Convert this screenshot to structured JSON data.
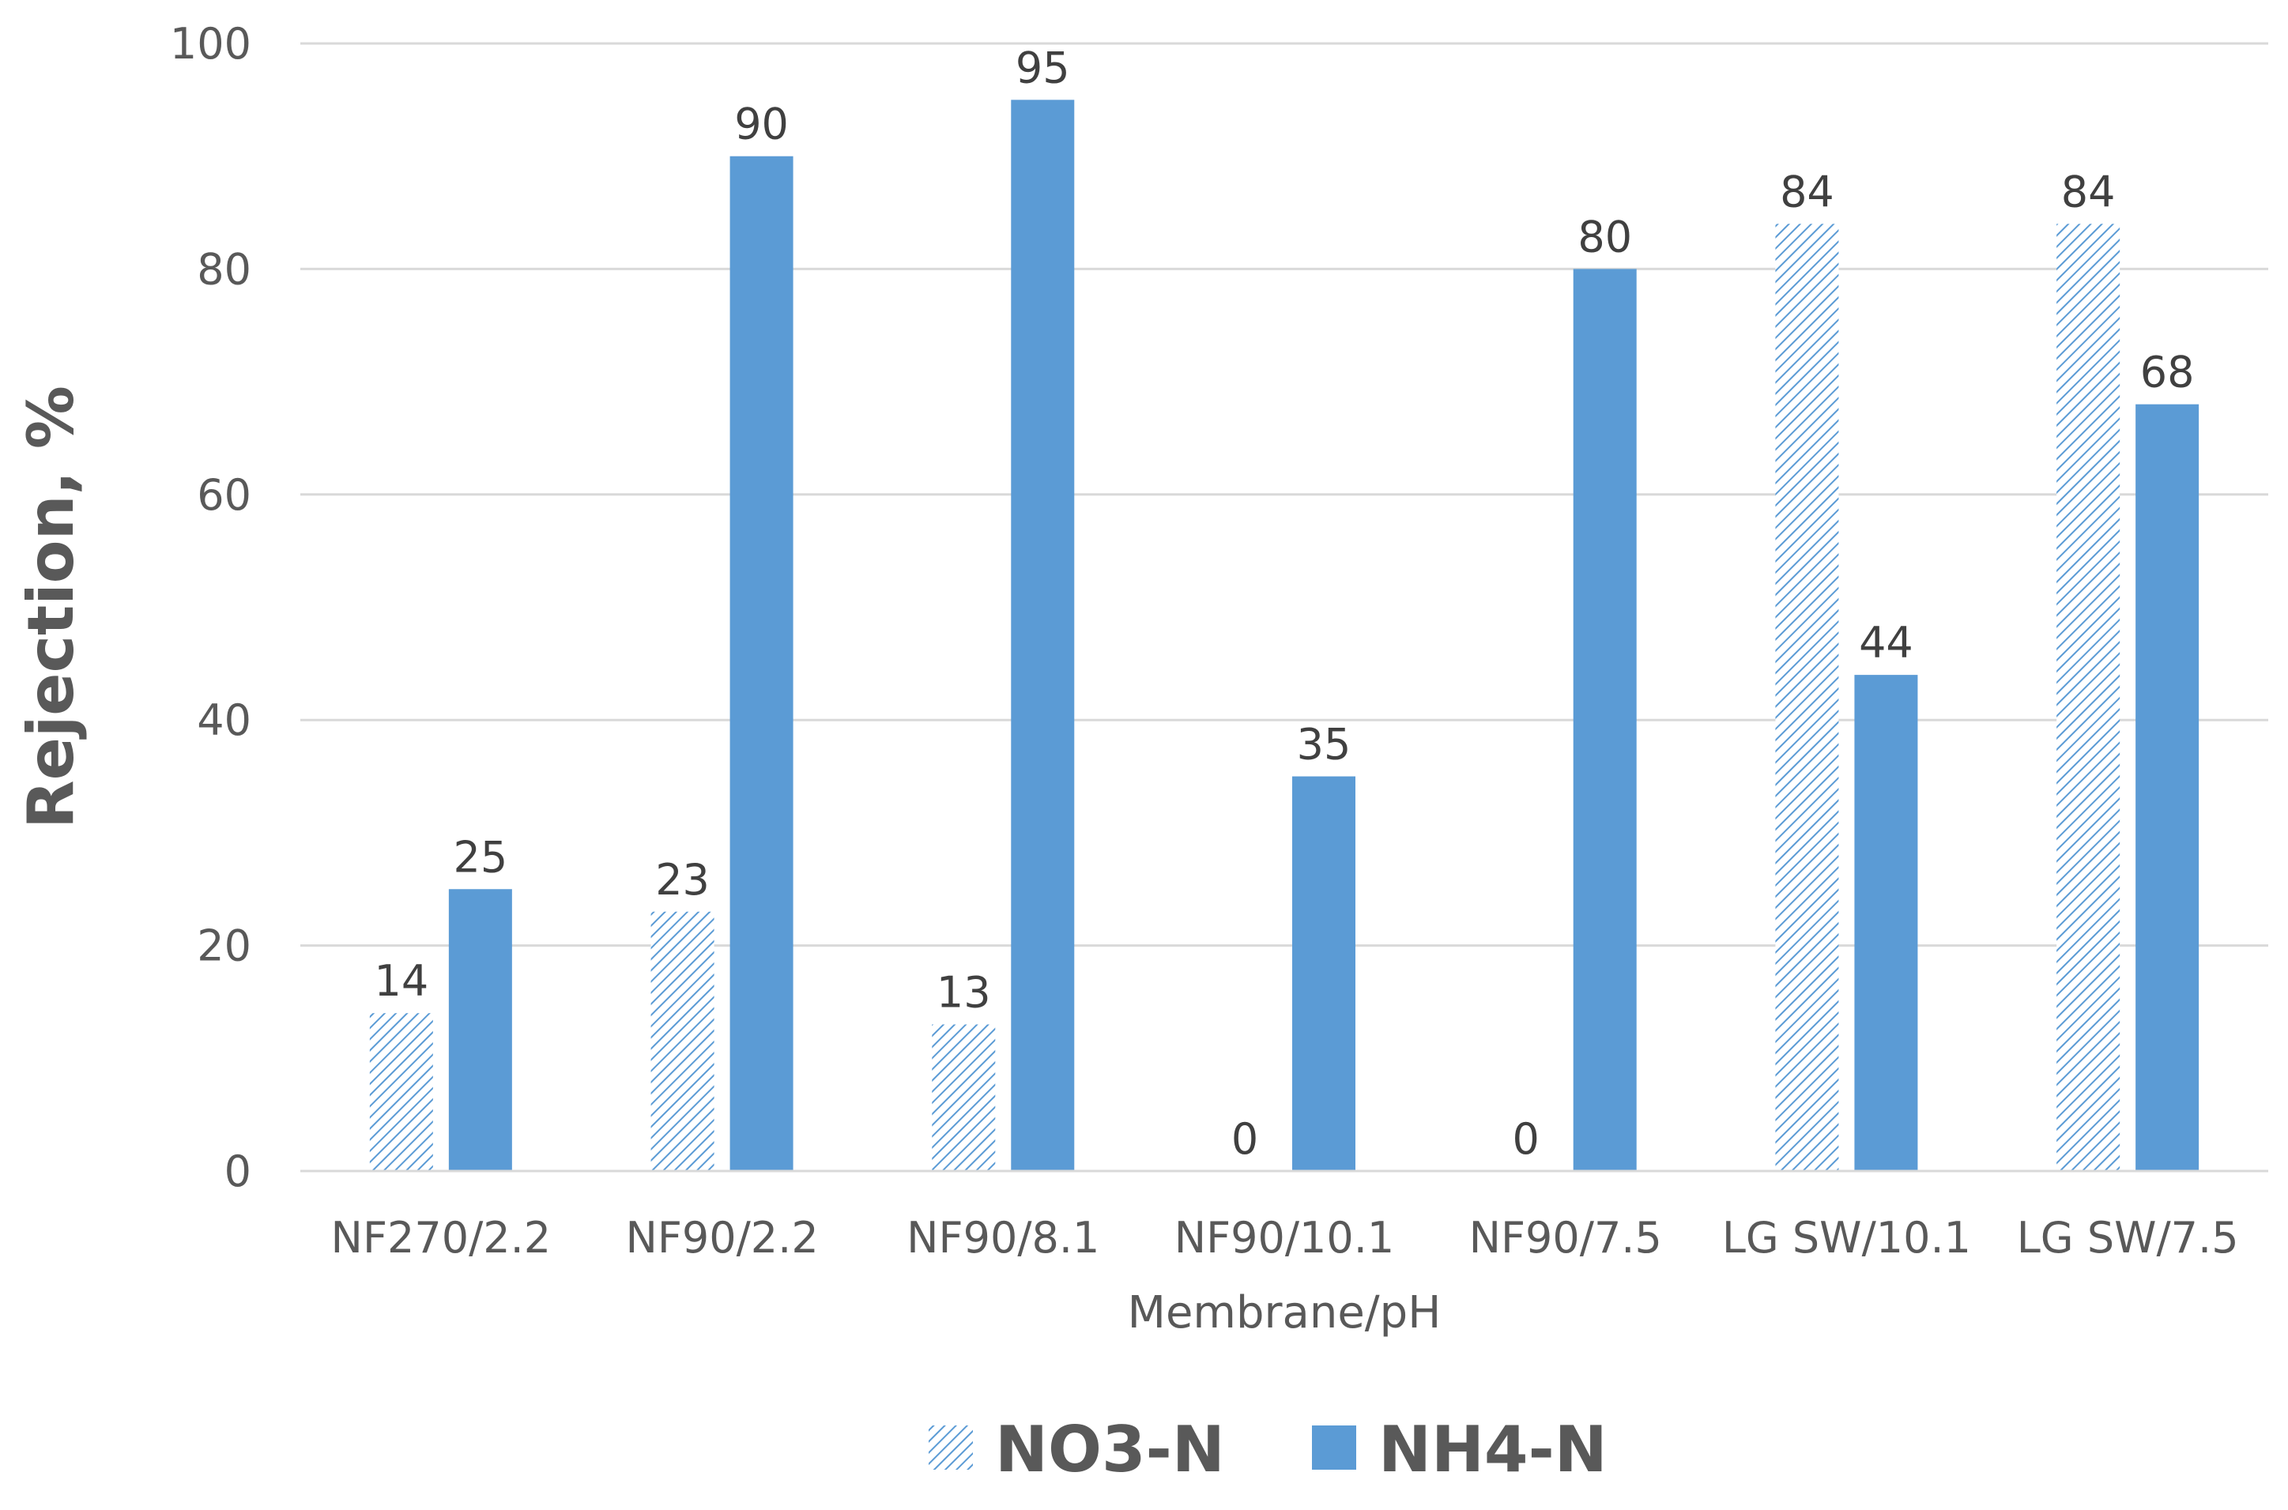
{
  "chart_data": {
    "type": "bar",
    "categories": [
      "NF270/2.2",
      "NF90/2.2",
      "NF90/8.1",
      "NF90/10.1",
      "NF90/7.5",
      "LG SW/10.1",
      "LG SW/7.5"
    ],
    "series": [
      {
        "name": "NO3-N",
        "values": [
          14,
          23,
          13,
          0,
          0,
          84,
          84
        ],
        "labels": [
          "14",
          "23",
          "13",
          "0",
          "0",
          "84",
          "84"
        ],
        "color": "#5B9BD5",
        "fill": "hatched"
      },
      {
        "name": "NH4-N",
        "values": [
          25,
          90,
          95,
          35,
          80,
          44,
          68
        ],
        "labels": [
          "25",
          "90",
          "95",
          "35",
          "80",
          "44",
          "68"
        ],
        "color": "#5B9BD5",
        "fill": "solid"
      }
    ],
    "xlabel": "Membrane/pH",
    "ylabel": "Rejection, %",
    "ylim": [
      0,
      100
    ],
    "yticks": [
      0,
      20,
      40,
      60,
      80,
      100
    ],
    "ytick_labels": [
      "0",
      "20",
      "40",
      "60",
      "80",
      "100"
    ],
    "grid": true,
    "legend_position": "bottom"
  }
}
